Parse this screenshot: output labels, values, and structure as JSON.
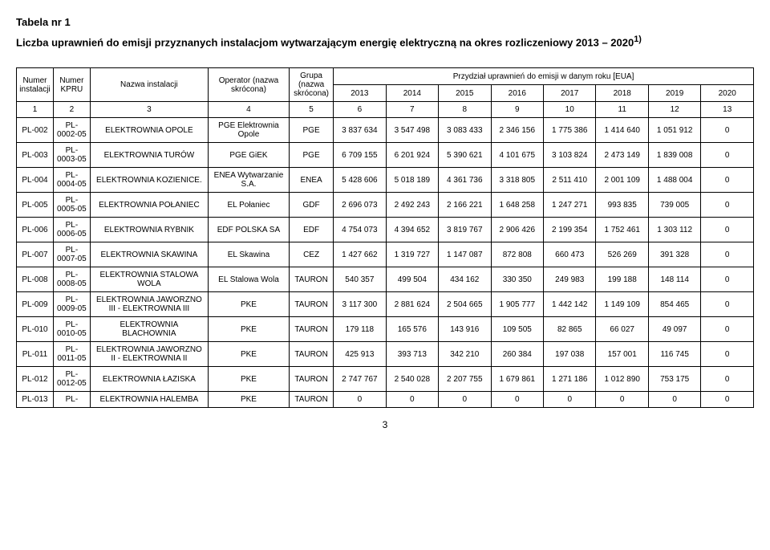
{
  "title": "Tabela nr 1",
  "subtitle": "Liczba uprawnień do emisji przyznanych instalacjom wytwarzającym energię elektryczną na okres rozliczeniowy 2013 – 2020",
  "subtitle_sup": "1)",
  "header": {
    "numer_instalacji": "Numer instalacji",
    "numer_kpru": "Numer KPRU",
    "nazwa_instalacji": "Nazwa instalacji",
    "operator": "Operator (nazwa skrócona)",
    "grupa": "Grupa (nazwa skrócona)",
    "przydzial": "Przydział uprawnień do emisji w danym roku [EUA]",
    "years": [
      "2013",
      "2014",
      "2015",
      "2016",
      "2017",
      "2018",
      "2019",
      "2020"
    ]
  },
  "col_nums": [
    "1",
    "2",
    "3",
    "4",
    "5",
    "6",
    "7",
    "8",
    "9",
    "10",
    "11",
    "12",
    "13"
  ],
  "rows": [
    {
      "n": "PL-002",
      "kpru": "PL-0002-05",
      "nazwa": "ELEKTROWNIA OPOLE",
      "op": "PGE Elektrownia Opole",
      "gr": "PGE",
      "y": [
        "3 837 634",
        "3 547 498",
        "3 083 433",
        "2 346 156",
        "1 775 386",
        "1 414 640",
        "1 051 912",
        "0"
      ]
    },
    {
      "n": "PL-003",
      "kpru": "PL-0003-05",
      "nazwa": "ELEKTROWNIA TURÓW",
      "op": "PGE GiEK",
      "gr": "PGE",
      "y": [
        "6 709 155",
        "6 201 924",
        "5 390 621",
        "4 101 675",
        "3 103 824",
        "2 473 149",
        "1 839 008",
        "0"
      ]
    },
    {
      "n": "PL-004",
      "kpru": "PL-0004-05",
      "nazwa": "ELEKTROWNIA KOZIENICE.",
      "op": "ENEA Wytwarzanie S.A.",
      "gr": "ENEA",
      "y": [
        "5 428 606",
        "5 018 189",
        "4 361 736",
        "3 318 805",
        "2 511 410",
        "2 001 109",
        "1 488 004",
        "0"
      ]
    },
    {
      "n": "PL-005",
      "kpru": "PL-0005-05",
      "nazwa": "ELEKTROWNIA POŁANIEC",
      "op": "EL Połaniec",
      "gr": "GDF",
      "y": [
        "2 696 073",
        "2 492 243",
        "2 166 221",
        "1 648 258",
        "1 247 271",
        "993 835",
        "739 005",
        "0"
      ]
    },
    {
      "n": "PL-006",
      "kpru": "PL-0006-05",
      "nazwa": "ELEKTROWNIA RYBNIK",
      "op": "EDF POLSKA SA",
      "gr": "EDF",
      "y": [
        "4 754 073",
        "4 394 652",
        "3 819 767",
        "2 906 426",
        "2 199 354",
        "1 752 461",
        "1 303 112",
        "0"
      ]
    },
    {
      "n": "PL-007",
      "kpru": "PL-0007-05",
      "nazwa": "ELEKTROWNIA SKAWINA",
      "op": "EL Skawina",
      "gr": "CEZ",
      "y": [
        "1 427 662",
        "1 319 727",
        "1 147 087",
        "872 808",
        "660 473",
        "526 269",
        "391 328",
        "0"
      ]
    },
    {
      "n": "PL-008",
      "kpru": "PL-0008-05",
      "nazwa": "ELEKTROWNIA STALOWA WOLA",
      "op": "EL Stalowa Wola",
      "gr": "TAURON",
      "y": [
        "540 357",
        "499 504",
        "434 162",
        "330 350",
        "249 983",
        "199 188",
        "148 114",
        "0"
      ]
    },
    {
      "n": "PL-009",
      "kpru": "PL-0009-05",
      "nazwa": "ELEKTROWNIA JAWORZNO III - ELEKTROWNIA III",
      "op": "PKE",
      "gr": "TAURON",
      "y": [
        "3 117 300",
        "2 881 624",
        "2 504 665",
        "1 905 777",
        "1 442 142",
        "1 149 109",
        "854 465",
        "0"
      ]
    },
    {
      "n": "PL-010",
      "kpru": "PL-0010-05",
      "nazwa": "ELEKTROWNIA BLACHOWNIA",
      "op": "PKE",
      "gr": "TAURON",
      "y": [
        "179 118",
        "165 576",
        "143 916",
        "109 505",
        "82 865",
        "66 027",
        "49 097",
        "0"
      ]
    },
    {
      "n": "PL-011",
      "kpru": "PL-0011-05",
      "nazwa": "ELEKTROWNIA JAWORZNO II - ELEKTROWNIA II",
      "op": "PKE",
      "gr": "TAURON",
      "y": [
        "425 913",
        "393 713",
        "342 210",
        "260 384",
        "197 038",
        "157 001",
        "116 745",
        "0"
      ]
    },
    {
      "n": "PL-012",
      "kpru": "PL-0012-05",
      "nazwa": "ELEKTROWNIA ŁAZISKA",
      "op": "PKE",
      "gr": "TAURON",
      "y": [
        "2 747 767",
        "2 540 028",
        "2 207 755",
        "1 679 861",
        "1 271 186",
        "1 012 890",
        "753 175",
        "0"
      ]
    },
    {
      "n": "PL-013",
      "kpru": "PL-",
      "nazwa": "ELEKTROWNIA HALEMBA",
      "op": "PKE",
      "gr": "TAURON",
      "y": [
        "0",
        "0",
        "0",
        "0",
        "0",
        "0",
        "0",
        "0"
      ]
    }
  ],
  "page_number": "3",
  "styling": {
    "border_color": "#000000",
    "background_color": "#ffffff",
    "text_color": "#000000",
    "font_family": "Arial, sans-serif",
    "title_fontsize": 13,
    "cell_fontsize": 10
  }
}
